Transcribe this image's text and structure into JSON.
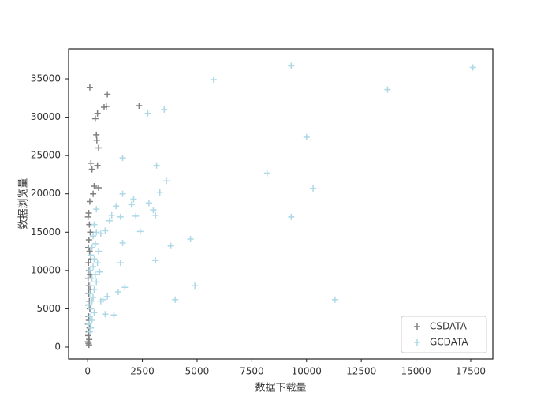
{
  "chart_data": {
    "type": "scatter",
    "x_label": "数据下载量",
    "y_label": "数据浏览量",
    "xlim": [
      -870,
      18510
    ],
    "ylim": [
      -1545,
      38915
    ],
    "xticks": [
      0,
      2500,
      5000,
      7500,
      10000,
      12500,
      15000,
      17500
    ],
    "yticks": [
      0,
      5000,
      10000,
      15000,
      20000,
      25000,
      30000,
      35000
    ],
    "legend": "lower right",
    "marker": "+",
    "series": [
      {
        "name": "CSDATA",
        "color": "#808080",
        "x": [
          100,
          900,
          850,
          750,
          2350,
          450,
          350,
          400,
          420,
          500,
          150,
          200,
          450,
          300,
          500,
          250,
          100,
          50,
          80,
          120,
          60,
          30,
          90,
          140,
          40,
          70,
          110,
          20,
          60,
          130,
          50,
          80,
          30,
          100,
          40,
          60,
          20,
          90,
          50,
          30,
          70,
          10,
          40,
          60,
          20
        ],
        "y": [
          33900,
          33000,
          31400,
          31300,
          31500,
          30500,
          29800,
          27700,
          27000,
          26000,
          24000,
          23200,
          23700,
          21000,
          20800,
          20000,
          19000,
          17500,
          16000,
          15000,
          14000,
          13000,
          12500,
          11500,
          11000,
          10000,
          9500,
          9000,
          8000,
          7500,
          7000,
          6000,
          5500,
          5000,
          4000,
          3500,
          3000,
          2500,
          2000,
          1500,
          1000,
          700,
          500,
          300,
          17000
        ]
      },
      {
        "name": "GCDATA",
        "color": "#add8e6",
        "x": [
          17600,
          9300,
          5750,
          13700,
          3500,
          2750,
          10000,
          1600,
          3150,
          8200,
          3600,
          10300,
          3300,
          1600,
          2100,
          2800,
          1300,
          2000,
          3000,
          9300,
          1100,
          1500,
          3100,
          2200,
          1000,
          2400,
          800,
          4700,
          1600,
          3800,
          3100,
          1500,
          4900,
          1700,
          1400,
          4000,
          11300,
          700,
          900,
          800,
          1200,
          600,
          300,
          400,
          250,
          350,
          200,
          500,
          150,
          300,
          450,
          250,
          100,
          350,
          200,
          400,
          150,
          300,
          100,
          250,
          200,
          50,
          150,
          300,
          100,
          200,
          50,
          150,
          100,
          400,
          600,
          550
        ],
        "y": [
          36500,
          36700,
          34900,
          33600,
          31000,
          30500,
          27400,
          24700,
          23700,
          22700,
          21700,
          20700,
          20200,
          20000,
          19300,
          18800,
          18400,
          18600,
          17900,
          17000,
          17200,
          17000,
          17200,
          17100,
          16500,
          15100,
          15200,
          14100,
          13600,
          13200,
          11300,
          11000,
          8000,
          7800,
          7200,
          6200,
          6200,
          6200,
          6600,
          4300,
          4200,
          6000,
          16000,
          15000,
          14500,
          13500,
          13000,
          12500,
          12000,
          11500,
          11000,
          10500,
          10000,
          9500,
          9000,
          8500,
          8000,
          7500,
          7000,
          6500,
          6000,
          5500,
          5000,
          4500,
          4000,
          3500,
          3000,
          2500,
          2000,
          18000,
          14800,
          9800
        ]
      }
    ]
  }
}
